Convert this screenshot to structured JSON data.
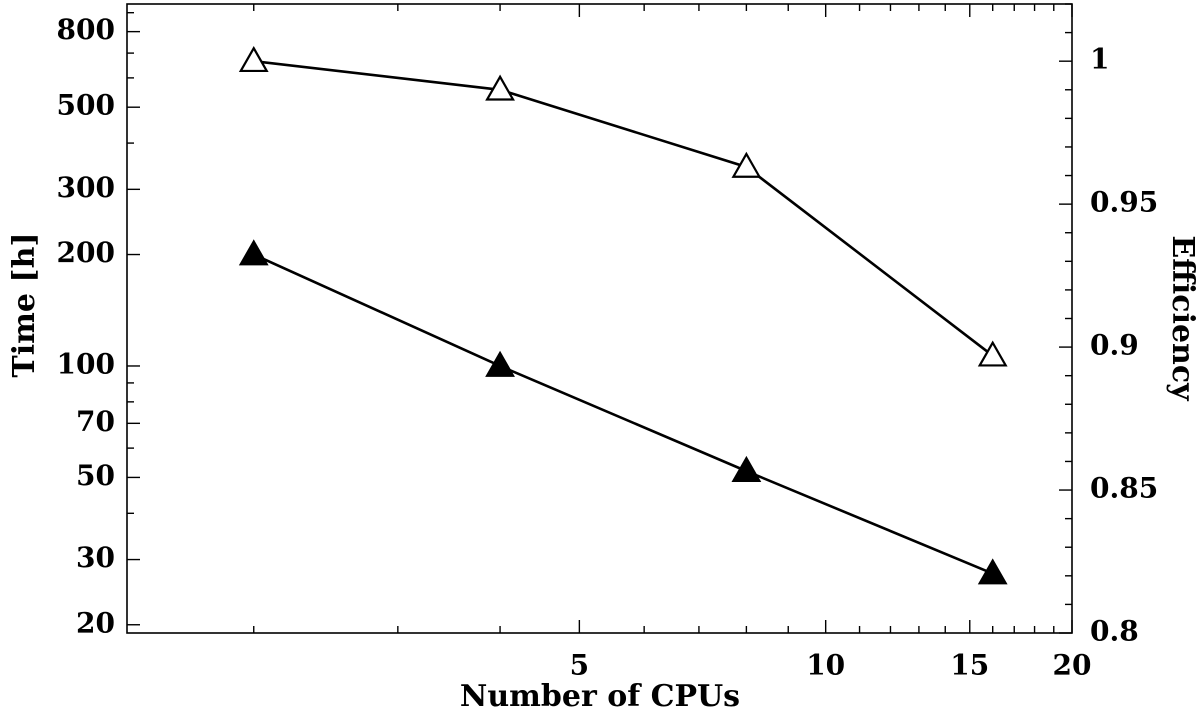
{
  "chart_data": {
    "type": "line",
    "title": "",
    "xlabel": "Number of CPUs",
    "ylabel_left": "Time [h]",
    "ylabel_right": "Efficiency",
    "x_scale": "log",
    "y_left_scale": "log",
    "y_right_scale": "linear",
    "xlim": [
      1.4,
      20
    ],
    "ylim_left": [
      19,
      950
    ],
    "ylim_right": [
      0.8,
      1.02
    ],
    "x_ticks": [
      5,
      10,
      15,
      20
    ],
    "x_tick_labels": [
      "5",
      "10",
      "15",
      "20"
    ],
    "y_left_ticks": [
      20,
      30,
      50,
      70,
      100,
      200,
      300,
      500,
      800
    ],
    "y_left_tick_labels": [
      "20",
      "30",
      "50",
      "70",
      "100",
      "200",
      "300",
      "500",
      "800"
    ],
    "y_right_ticks": [
      0.8,
      0.85,
      0.9,
      0.95,
      1.0
    ],
    "y_right_tick_labels": [
      "0.8",
      "0.85",
      "0.9",
      "0.95",
      "1"
    ],
    "grid": false,
    "legend": "none",
    "series": [
      {
        "axis": "left",
        "marker": "filled-triangle",
        "x": [
          2,
          4,
          8,
          16
        ],
        "values": [
          200,
          100,
          52,
          27.5
        ]
      },
      {
        "axis": "right",
        "marker": "open-triangle",
        "x": [
          2,
          4,
          8,
          16
        ],
        "values": [
          1.0,
          0.99,
          0.963,
          0.897
        ]
      }
    ]
  }
}
